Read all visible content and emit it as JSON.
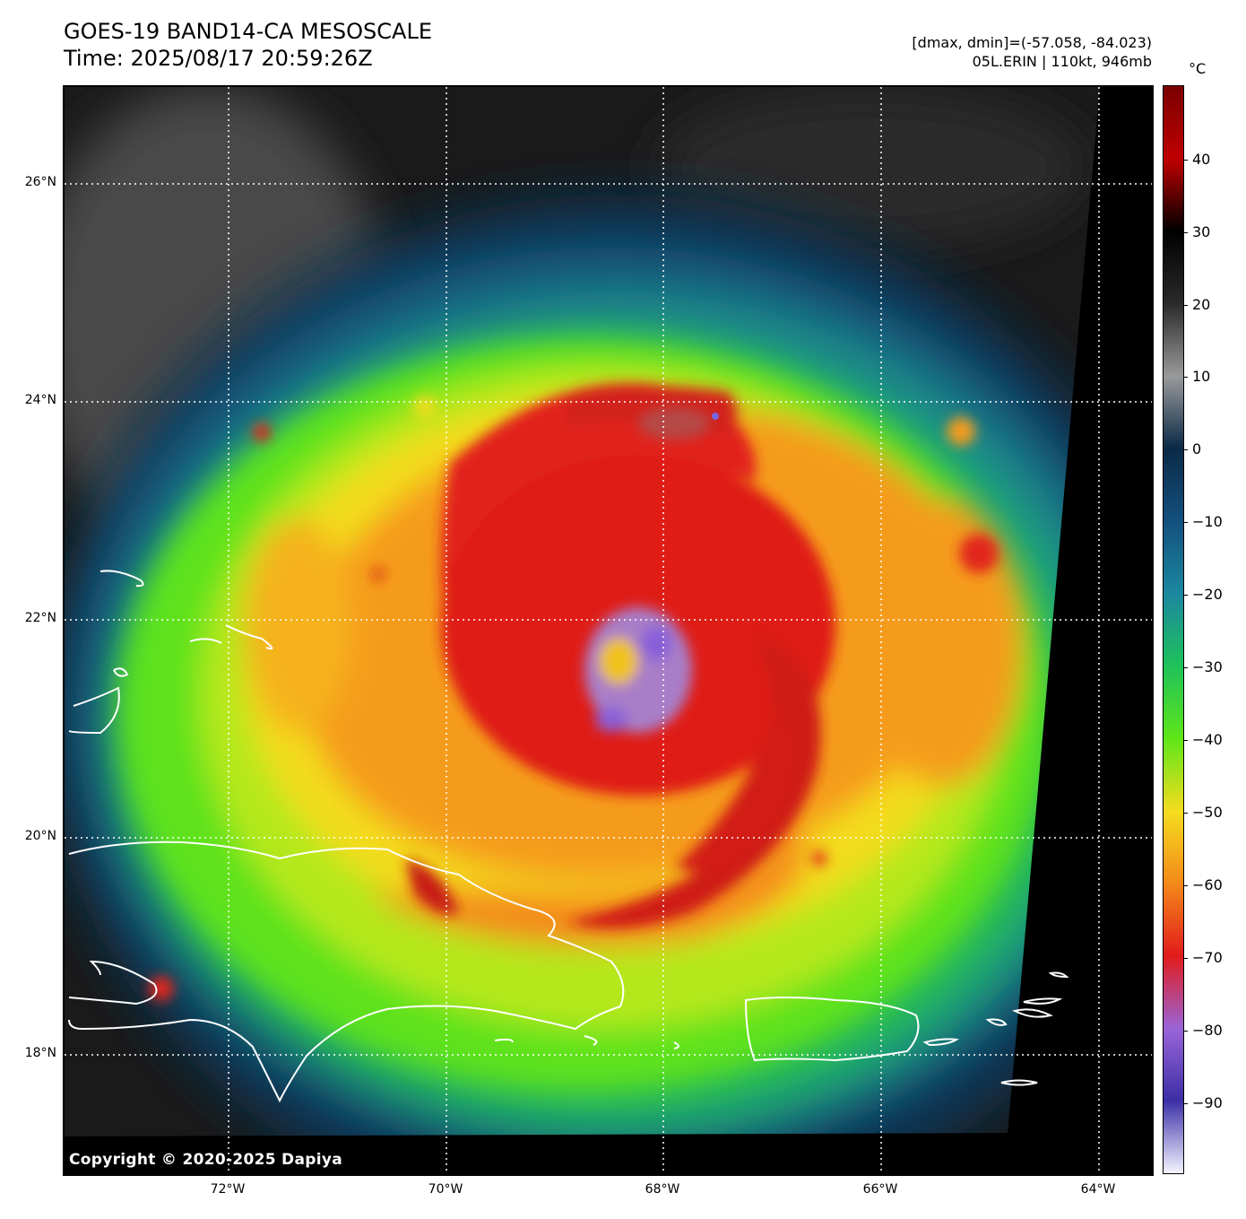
{
  "header": {
    "title_line1": "GOES-19 BAND14-CA MESOSCALE",
    "title_line2": "Time: 2025/08/17 20:59:26Z",
    "data_range": "[dmax, dmin]=(-57.058, -84.023)",
    "storm_info": "05L.ERIN | 110kt, 946mb"
  },
  "map": {
    "copyright": "Copyright © 2020-2025 Dapiya",
    "lat_labels": [
      "26°N",
      "24°N",
      "22°N",
      "20°N",
      "18°N"
    ],
    "lon_labels": [
      "72°W",
      "70°W",
      "68°W",
      "66°W",
      "64°W"
    ],
    "coastline_color": "#ffffff",
    "gridline_color": "#ffffff",
    "gridline_style": "dotted"
  },
  "colorbar": {
    "unit": "°C",
    "ticks": [
      "40",
      "30",
      "20",
      "10",
      "0",
      "−10",
      "−20",
      "−30",
      "−40",
      "−50",
      "−60",
      "−70",
      "−80",
      "−90"
    ],
    "colors": [
      "#7a0000",
      "#c00000",
      "#000000",
      "#2a2a2a",
      "#9a9a9a",
      "#0b2a46",
      "#14507e",
      "#1b88a0",
      "#1fc15a",
      "#5ee619",
      "#f5dc1e",
      "#f48a1a",
      "#e21b1b",
      "#9a64d8",
      "#3c2fa6",
      "#f4f4ff"
    ]
  }
}
